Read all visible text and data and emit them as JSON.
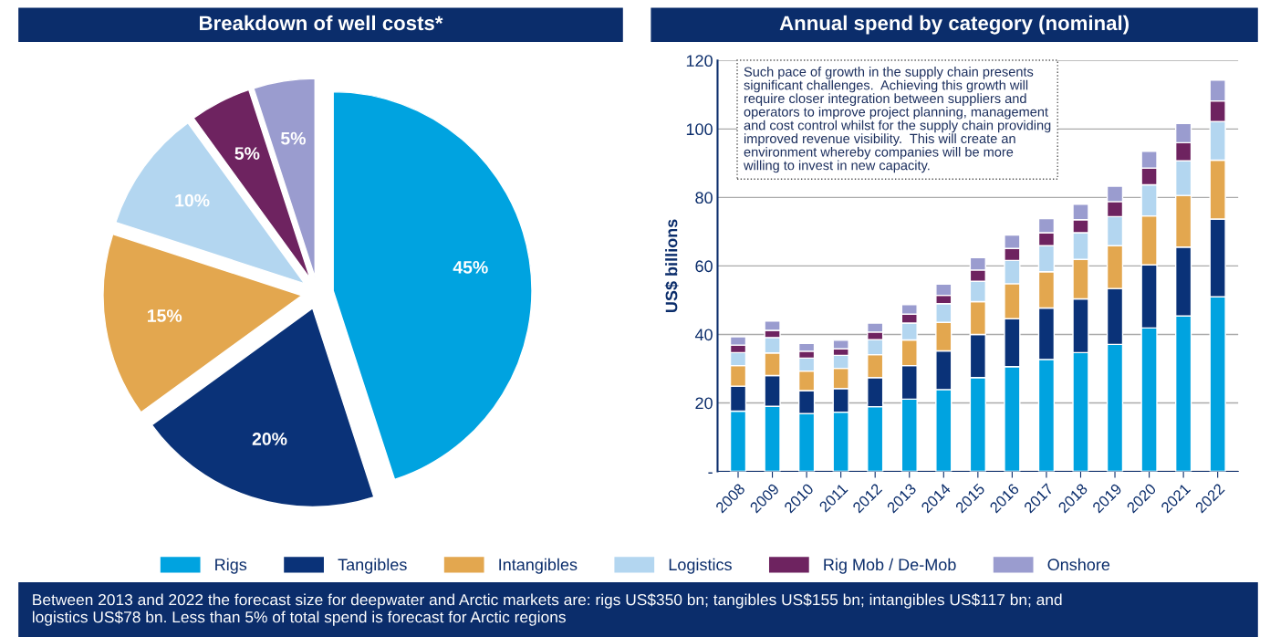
{
  "chart_data": [
    {
      "type": "pie",
      "title": "Breakdown of well costs*",
      "categories": [
        "Rigs",
        "Tangibles",
        "Intangibles",
        "Logistics",
        "Rig Mob / De-Mob",
        "Onshore"
      ],
      "values": [
        45,
        20,
        15,
        10,
        5,
        5
      ],
      "value_labels": [
        "45%",
        "20%",
        "15%",
        "10%",
        "5%",
        "5%"
      ],
      "colors": [
        "#00a3e0",
        "#0a3278",
        "#e3a74f",
        "#b3d6f0",
        "#6e2360",
        "#9a9ccf"
      ],
      "legend": "bottom"
    },
    {
      "type": "bar",
      "title": "Annual spend by category (nominal)",
      "ylabel": "US$ billions",
      "stacked": true,
      "categories": [
        "2008",
        "2009",
        "2010",
        "2011",
        "2012",
        "2013",
        "2014",
        "2015",
        "2016",
        "2017",
        "2018",
        "2019",
        "2020",
        "2021",
        "2022"
      ],
      "series": [
        {
          "color": "#00a3e0",
          "values": [
            17.6,
            19.0,
            16.9,
            17.3,
            18.9,
            21.1,
            23.9,
            27.4,
            30.6,
            32.7,
            34.7,
            37.1,
            41.9,
            45.4,
            51.0
          ]
        },
        {
          "color": "#0a3278",
          "values": [
            7.3,
            9.0,
            6.7,
            6.9,
            8.5,
            9.8,
            11.3,
            12.6,
            14.0,
            15.0,
            15.7,
            16.3,
            18.4,
            20.1,
            22.7
          ]
        },
        {
          "color": "#e3a74f",
          "values": [
            6.0,
            6.6,
            5.7,
            5.9,
            6.7,
            7.5,
            8.3,
            9.6,
            10.2,
            10.6,
            11.5,
            12.5,
            14.3,
            15.1,
            17.2
          ]
        },
        {
          "color": "#b3d6f0",
          "values": [
            3.8,
            4.5,
            3.8,
            3.8,
            4.4,
            4.9,
            5.5,
            5.9,
            6.8,
            7.6,
            7.8,
            8.5,
            9.1,
            10.1,
            11.3
          ]
        },
        {
          "color": "#6e2360",
          "values": [
            2.2,
            2.1,
            2.0,
            1.9,
            2.2,
            2.6,
            2.4,
            3.3,
            3.5,
            3.8,
            3.8,
            4.4,
            4.9,
            5.3,
            6.0
          ]
        },
        {
          "color": "#9a9ccf",
          "values": [
            2.4,
            2.7,
            2.3,
            2.5,
            2.6,
            2.8,
            3.3,
            3.6,
            3.9,
            4.1,
            4.5,
            4.5,
            4.9,
            5.6,
            6.1
          ]
        }
      ],
      "ylim": [
        0,
        120
      ],
      "yticks": [
        {
          "value": 0,
          "label": "-"
        },
        20,
        40,
        60,
        80,
        100,
        120
      ],
      "grid": "y",
      "annotations": [
        "Such pace of growth in the supply chain presents\nsignificant challenges.  Achieving this growth will\nrequire closer integration between suppliers and\noperators to improve project planning, management\nand cost control whilst for the supply chain providing\nimproved revenue visibility.  This will create an\nenvironment whereby companies will be more\nwilling to invest in new capacity.",
        "Between 2013 and 2022 the forecast size for deepwater and Arctic markets are: rigs US$350 bn; tangibles US$155 bn; intangibles US$117 bn; and\nlogistics US$78 bn. Less than 5% of total spend is forecast for Arctic regions"
      ]
    }
  ]
}
